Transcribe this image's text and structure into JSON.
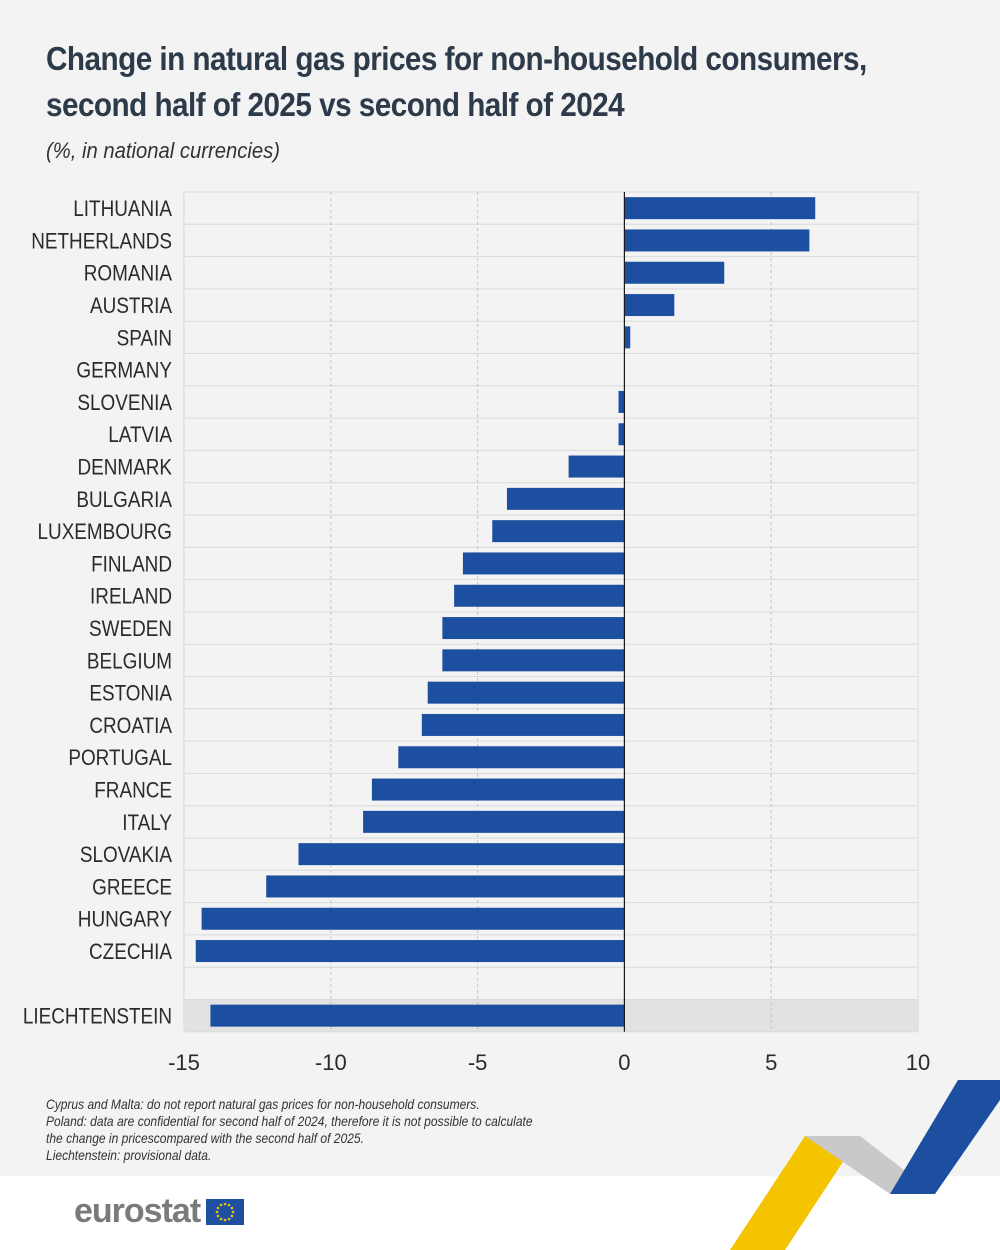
{
  "header": {
    "title_line1": "Change in natural gas prices for non-household consumers,",
    "title_line2": "second half of 2025 vs second half of 2024",
    "subtitle": "(%, in national currencies)"
  },
  "chart_data": {
    "type": "bar",
    "orientation": "horizontal",
    "categories": [
      "LITHUANIA",
      "NETHERLANDS",
      "ROMANIA",
      "AUSTRIA",
      "SPAIN",
      "GERMANY",
      "SLOVENIA",
      "LATVIA",
      "DENMARK",
      "BULGARIA",
      "LUXEMBOURG",
      "FINLAND",
      "IRELAND",
      "SWEDEN",
      "BELGIUM",
      "ESTONIA",
      "CROATIA",
      "PORTUGAL",
      "FRANCE",
      "ITALY",
      "SLOVAKIA",
      "GREECE",
      "HUNGARY",
      "CZECHIA",
      "",
      "LIECHTENSTEIN"
    ],
    "values": [
      6.5,
      6.3,
      3.4,
      1.7,
      0.2,
      0.0,
      -0.2,
      -0.2,
      -1.9,
      -4.0,
      -4.5,
      -5.5,
      -5.8,
      -6.2,
      -6.2,
      -6.7,
      -6.9,
      -7.7,
      -8.6,
      -8.9,
      -11.1,
      -12.2,
      -14.4,
      -14.6,
      null,
      -14.1
    ],
    "highlighted_categories": [
      "LIECHTENSTEIN"
    ],
    "xlim": [
      -15,
      10
    ],
    "xticks": [
      -15,
      -10,
      -5,
      0,
      5,
      10
    ],
    "xtick_labels": [
      "-15",
      "-10",
      "-5",
      "0",
      "5",
      "10"
    ],
    "grid": true,
    "bar_color": "#1d4fa1",
    "highlight_background": "#e2e2e2"
  },
  "notes": {
    "line1": "Cyprus and Malta: do not report natural gas prices for non-household consumers.",
    "line2": "Poland: data are confidential for second half of 2024, therefore it is not possible to calculate",
    "line3": "the change in pricescompared with the second half of 2025.",
    "line4": "Liechtenstein: provisional data."
  },
  "footer": {
    "logo_text": "eurostat"
  },
  "colors": {
    "background": "#f3f3f3",
    "bar": "#1d4fa1",
    "decor_yellow": "#f5c400",
    "decor_blue": "#1d4fa1",
    "decor_grey": "#c9c9c9"
  }
}
